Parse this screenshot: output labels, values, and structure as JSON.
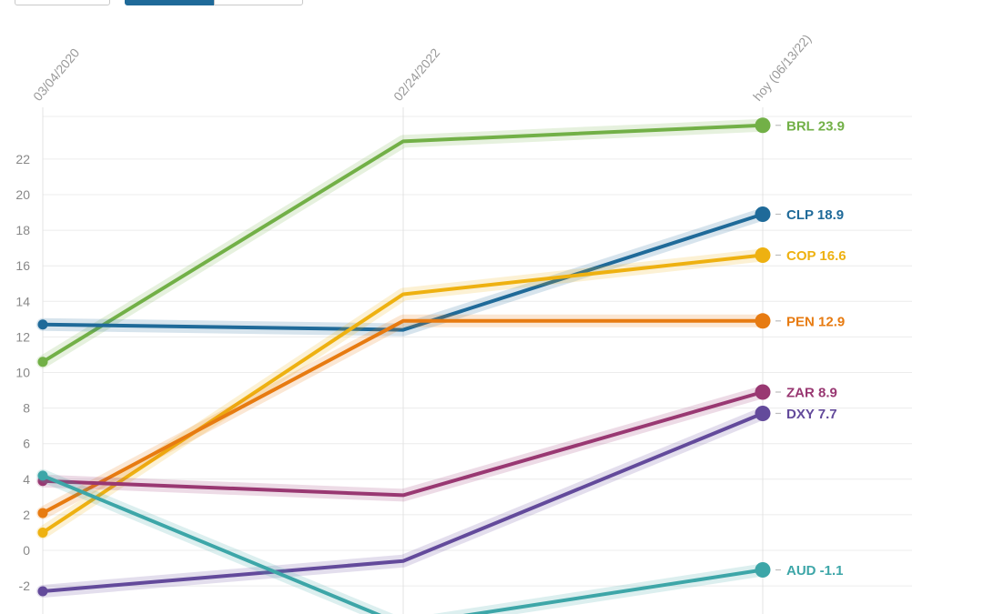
{
  "controls": {
    "segments": [
      "",
      "",
      ""
    ]
  },
  "chart_data": {
    "type": "line",
    "x": [
      "03/04/2020",
      "02/24/2022",
      "hoy (06/13/22)"
    ],
    "ylim": [
      -3.5,
      24.5
    ],
    "yticks": [
      -2,
      0,
      2,
      4,
      6,
      8,
      10,
      12,
      14,
      16,
      18,
      20,
      22
    ],
    "grid": true,
    "series": [
      {
        "name": "BRL",
        "values": [
          10.6,
          23.0,
          23.9
        ],
        "label": "BRL 23.9",
        "color": "#72b047"
      },
      {
        "name": "CLP",
        "values": [
          12.7,
          12.4,
          18.9
        ],
        "label": "CLP 18.9",
        "color": "#1f6a99"
      },
      {
        "name": "COP",
        "values": [
          1.0,
          14.4,
          16.6
        ],
        "label": "COP 16.6",
        "color": "#eeb111"
      },
      {
        "name": "PEN",
        "values": [
          2.1,
          12.9,
          12.9
        ],
        "label": "PEN 12.9",
        "color": "#e77b11"
      },
      {
        "name": "ZAR",
        "values": [
          3.9,
          3.1,
          8.9
        ],
        "label": "ZAR 8.9",
        "color": "#993872"
      },
      {
        "name": "DXY",
        "values": [
          -2.3,
          -0.6,
          7.7
        ],
        "label": "DXY 7.7",
        "color": "#634a9b"
      },
      {
        "name": "AUD",
        "values": [
          4.2,
          -4.2,
          -1.1
        ],
        "label": "AUD -1.1",
        "color": "#3da6a8"
      }
    ]
  }
}
